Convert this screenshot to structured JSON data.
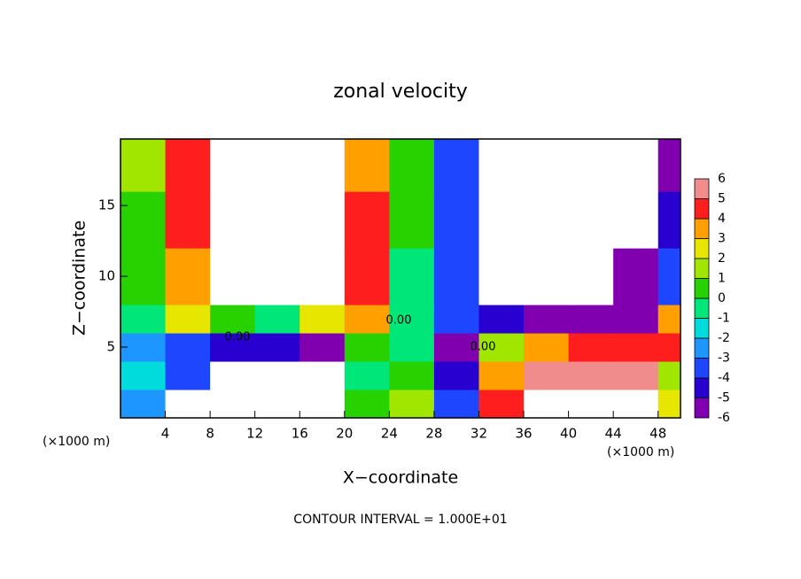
{
  "chart_data": {
    "type": "contour",
    "title": "zonal velocity",
    "xlabel": "X−coordinate",
    "ylabel": "Z−coordinate",
    "x_unit": "(×1000 m)",
    "footer": "CONTOUR INTERVAL = 1.000E+01",
    "contour_label": "0.00",
    "xlim": [
      0,
      50
    ],
    "ylim": [
      0,
      19.7
    ],
    "xticks": [
      4,
      8,
      12,
      16,
      20,
      24,
      28,
      32,
      36,
      40,
      44,
      48
    ],
    "yticks": [
      5,
      10,
      15
    ],
    "xbins": [
      0,
      4,
      8,
      12,
      16,
      20,
      24,
      28,
      32,
      36,
      40,
      44,
      48,
      50
    ],
    "zbins": [
      0,
      2,
      4,
      6,
      8,
      12,
      16,
      19.7
    ],
    "z": [
      [
        -2,
        -8,
        -8,
        -8,
        -8,
        1,
        2,
        -3,
        5,
        9,
        9,
        9,
        3
      ],
      [
        -1,
        -3,
        -8,
        -8,
        -8,
        0,
        1,
        -4,
        4,
        6,
        6,
        6,
        2
      ],
      [
        -2,
        -3,
        -4,
        -4,
        -5,
        1,
        0,
        -5,
        2,
        4,
        5,
        5,
        5
      ],
      [
        0,
        3,
        1,
        0,
        3,
        4,
        0,
        -3,
        -4,
        -5,
        -6,
        -5,
        4
      ],
      [
        1,
        4,
        9,
        9,
        9,
        5,
        0,
        -3,
        -9,
        -9,
        -9,
        -5,
        -3
      ],
      [
        1,
        5,
        9,
        9,
        9,
        5,
        1,
        -3,
        -9,
        -9,
        -9,
        -9,
        -4
      ],
      [
        2,
        5,
        9,
        9,
        9,
        4,
        1,
        -3,
        -9,
        -9,
        -9,
        -9,
        -5
      ]
    ],
    "levels": [
      -6,
      -5,
      -4,
      -3,
      -2,
      -1,
      0,
      1,
      2,
      3,
      4,
      5,
      6
    ],
    "colors": [
      "#8000b0",
      "#2800d0",
      "#1e46ff",
      "#1e96ff",
      "#00dcdc",
      "#00e678",
      "#28d200",
      "#a0e600",
      "#e6e600",
      "#ffa000",
      "#ff1e1e",
      "#f08c8c"
    ],
    "out_of_range_color": "#ffffff"
  }
}
